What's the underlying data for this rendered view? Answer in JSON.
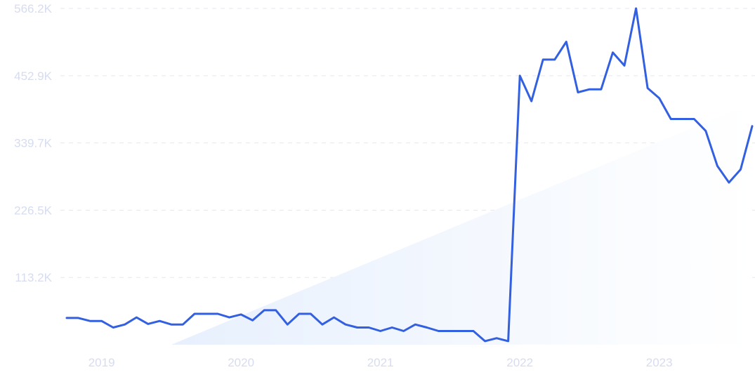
{
  "chart_data": {
    "type": "line",
    "title": "",
    "xlabel": "",
    "ylabel": "",
    "grid": true,
    "legend": "none",
    "colors": {
      "line": "#3360e0",
      "trend_start": "#e7f0fd",
      "trend_end": "#ffffff",
      "grid": "#e3e7f1",
      "tick_label": "#d7dcf0"
    },
    "x_range": [
      "2018-10",
      "2023-09"
    ],
    "ylim": [
      0,
      566200
    ],
    "y_ticks": [
      {
        "value": 113200,
        "label": "113.2K"
      },
      {
        "value": 226500,
        "label": "226.5K"
      },
      {
        "value": 339700,
        "label": "339.7K"
      },
      {
        "value": 452900,
        "label": "452.9K"
      },
      {
        "value": 566200,
        "label": "566.2K"
      }
    ],
    "x_ticks": [
      {
        "value": "2019-01",
        "label": "2019"
      },
      {
        "value": "2020-01",
        "label": "2020"
      },
      {
        "value": "2021-01",
        "label": "2021"
      },
      {
        "value": "2022-01",
        "label": "2022"
      },
      {
        "value": "2023-01",
        "label": "2023"
      }
    ],
    "trend": {
      "start": {
        "x": "2019-07",
        "y": 0
      },
      "end": {
        "x": "2023-09",
        "y": 407000
      }
    },
    "series": [
      {
        "x": [
          "2018-10",
          "2018-11",
          "2018-12",
          "2019-01",
          "2019-02",
          "2019-03",
          "2019-04",
          "2019-05",
          "2019-06",
          "2019-07",
          "2019-08",
          "2019-09",
          "2019-10",
          "2019-11",
          "2019-12",
          "2020-01",
          "2020-02",
          "2020-03",
          "2020-04",
          "2020-05",
          "2020-06",
          "2020-07",
          "2020-08",
          "2020-09",
          "2020-10",
          "2020-11",
          "2020-12",
          "2021-01",
          "2021-02",
          "2021-03",
          "2021-04",
          "2021-05",
          "2021-06",
          "2021-07",
          "2021-08",
          "2021-09",
          "2021-10",
          "2021-11",
          "2021-12",
          "2022-01",
          "2022-02",
          "2022-03",
          "2022-04",
          "2022-05",
          "2022-06",
          "2022-07",
          "2022-08",
          "2022-09",
          "2022-10",
          "2022-11",
          "2022-12",
          "2023-01",
          "2023-02",
          "2023-03",
          "2023-04",
          "2023-05",
          "2023-06",
          "2023-07",
          "2023-08",
          "2023-09"
        ],
        "values": [
          45000,
          45000,
          40000,
          40000,
          29000,
          34000,
          46000,
          35000,
          40000,
          34000,
          34000,
          52000,
          52000,
          52000,
          46000,
          51000,
          41000,
          58000,
          58000,
          34000,
          52000,
          52000,
          34000,
          46000,
          34000,
          29000,
          29000,
          23000,
          29000,
          23000,
          34000,
          29000,
          23000,
          23000,
          23000,
          23000,
          6000,
          11000,
          6000,
          452900,
          410000,
          480000,
          480000,
          510000,
          425000,
          430000,
          430000,
          492000,
          470000,
          566200,
          432000,
          415000,
          380000,
          380000,
          380000,
          360000,
          301000,
          273000,
          295000,
          368000
        ]
      }
    ]
  }
}
